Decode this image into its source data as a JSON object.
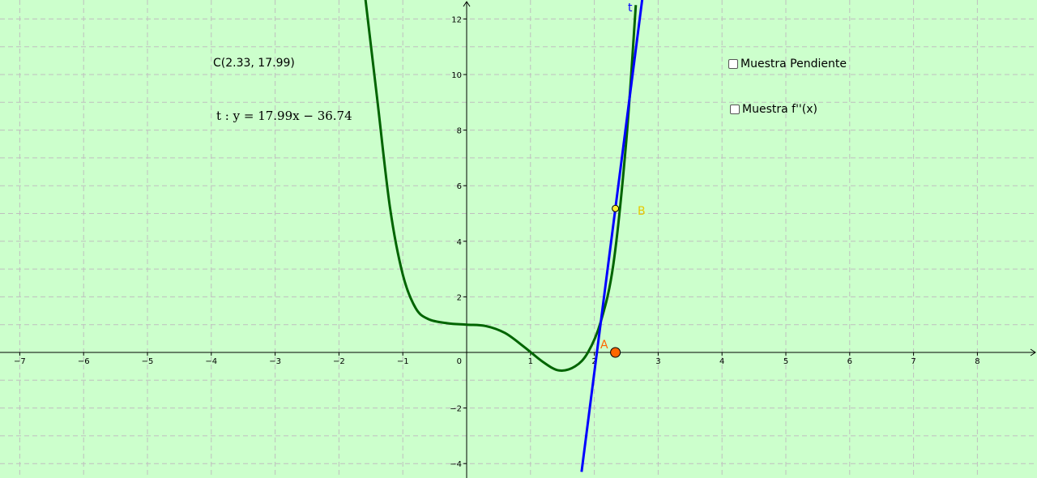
{
  "colors": {
    "background": "#ccffcc",
    "grid": "#bfbfbf",
    "axis": "#000000",
    "curve_f": "#006400",
    "tangent_t": "#0000ff",
    "point_A": "#ff6600",
    "point_B": "#ffee33",
    "label_B": "#e6c800"
  },
  "labels": {
    "point_C": "C(2.33, 17.99)",
    "tangent_equation": "t : y = 17.99x − 36.74",
    "tangent_name": "t",
    "point_A_name": "A",
    "point_B_name": "B"
  },
  "checkboxes": [
    {
      "label": "Muestra Pendiente",
      "checked": false
    },
    {
      "label": "Muestra f''(x)",
      "checked": false
    }
  ],
  "chart_data": {
    "type": "line",
    "grid": true,
    "xlim": [
      -7,
      8.8
    ],
    "ylim": [
      -4.3,
      12.7
    ],
    "x_ticks": [
      -7,
      -6,
      -5,
      -4,
      -3,
      -2,
      -1,
      1,
      2,
      3,
      4,
      5,
      6,
      7,
      8
    ],
    "y_ticks": [
      -4,
      -2,
      2,
      4,
      6,
      8,
      10,
      12
    ],
    "origin_label": "0",
    "series": [
      {
        "points": [
          [
            -1.6,
            13.0
          ],
          [
            -1.4,
            9.1
          ],
          [
            -1.2,
            5.2
          ],
          [
            -1.0,
            2.8
          ],
          [
            -0.8,
            1.6
          ],
          [
            -0.6,
            1.2
          ],
          [
            -0.3,
            1.05
          ],
          [
            0.0,
            1.0
          ],
          [
            0.3,
            0.95
          ],
          [
            0.6,
            0.7
          ],
          [
            0.9,
            0.2
          ],
          [
            1.2,
            -0.35
          ],
          [
            1.45,
            -0.65
          ],
          [
            1.7,
            -0.5
          ],
          [
            1.9,
            0.0
          ],
          [
            2.1,
            1.1
          ],
          [
            2.3,
            3.2
          ],
          [
            2.5,
            7.6
          ],
          [
            2.65,
            12.5
          ]
        ]
      },
      {
        "points": [
          [
            1.8,
            -4.3
          ],
          [
            2.75,
            12.7
          ]
        ]
      }
    ],
    "points": [
      {
        "name": "A",
        "x": 2.33,
        "y": 0
      },
      {
        "name": "B",
        "x": 2.33,
        "y": 5.18
      }
    ]
  }
}
